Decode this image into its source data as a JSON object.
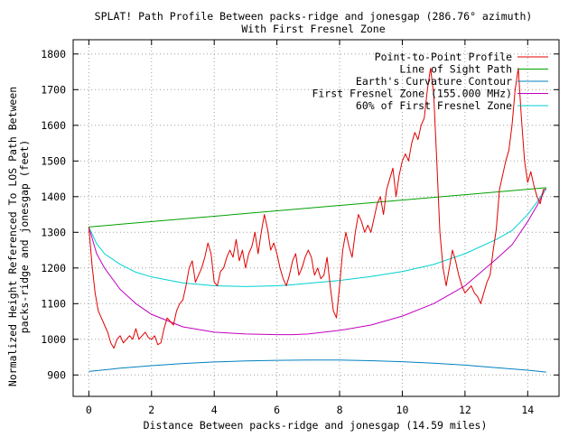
{
  "chart_data": {
    "type": "line",
    "title": "SPLAT! Path Profile Between packs-ridge and jonesgap (286.76° azimuth)",
    "subtitle": "With First Fresnel Zone",
    "xlabel": "Distance Between packs-ridge and jonesgap (14.59 miles)",
    "ylabel_line1": "Normalized Height Referenced To LOS Path Between",
    "ylabel_line2": "packs-ridge and jonesgap (feet)",
    "xlim": [
      -0.5,
      15.0
    ],
    "ylim": [
      840,
      1840
    ],
    "x_ticks": [
      0,
      2,
      4,
      6,
      8,
      10,
      12,
      14
    ],
    "y_ticks": [
      900,
      1000,
      1100,
      1200,
      1300,
      1400,
      1500,
      1600,
      1700,
      1800
    ],
    "grid": true,
    "legend_position": "top-right",
    "series": [
      {
        "name": "Point-to-Point Profile",
        "color": "#e00000",
        "x": [
          0.0,
          0.1,
          0.2,
          0.3,
          0.4,
          0.5,
          0.6,
          0.7,
          0.8,
          0.9,
          1.0,
          1.1,
          1.2,
          1.3,
          1.4,
          1.5,
          1.6,
          1.7,
          1.8,
          1.9,
          2.0,
          2.1,
          2.2,
          2.3,
          2.4,
          2.5,
          2.6,
          2.7,
          2.8,
          2.9,
          3.0,
          3.1,
          3.2,
          3.3,
          3.4,
          3.5,
          3.6,
          3.7,
          3.8,
          3.9,
          4.0,
          4.1,
          4.2,
          4.3,
          4.4,
          4.5,
          4.6,
          4.7,
          4.8,
          4.9,
          5.0,
          5.1,
          5.2,
          5.3,
          5.4,
          5.5,
          5.6,
          5.7,
          5.8,
          5.9,
          6.0,
          6.1,
          6.2,
          6.3,
          6.4,
          6.5,
          6.6,
          6.7,
          6.8,
          6.9,
          7.0,
          7.1,
          7.2,
          7.3,
          7.4,
          7.5,
          7.6,
          7.7,
          7.8,
          7.9,
          8.0,
          8.1,
          8.2,
          8.3,
          8.4,
          8.5,
          8.6,
          8.7,
          8.8,
          8.9,
          9.0,
          9.1,
          9.2,
          9.3,
          9.4,
          9.5,
          9.6,
          9.7,
          9.8,
          9.9,
          10.0,
          10.1,
          10.2,
          10.3,
          10.4,
          10.5,
          10.6,
          10.7,
          10.8,
          10.9,
          11.0,
          11.1,
          11.2,
          11.3,
          11.4,
          11.5,
          11.6,
          11.7,
          11.8,
          11.9,
          12.0,
          12.1,
          12.2,
          12.3,
          12.4,
          12.5,
          12.6,
          12.7,
          12.8,
          12.9,
          13.0,
          13.1,
          13.2,
          13.3,
          13.4,
          13.5,
          13.6,
          13.7,
          13.8,
          13.9,
          14.0,
          14.1,
          14.2,
          14.3,
          14.4,
          14.5,
          14.59
        ],
        "y": [
          1315,
          1210,
          1130,
          1080,
          1060,
          1040,
          1020,
          990,
          975,
          1000,
          1010,
          990,
          1000,
          1010,
          1000,
          1030,
          1000,
          1010,
          1020,
          1005,
          1000,
          1010,
          985,
          990,
          1030,
          1060,
          1050,
          1040,
          1080,
          1100,
          1110,
          1150,
          1200,
          1220,
          1160,
          1180,
          1200,
          1230,
          1270,
          1240,
          1160,
          1150,
          1190,
          1200,
          1230,
          1250,
          1230,
          1280,
          1220,
          1250,
          1200,
          1240,
          1260,
          1300,
          1240,
          1300,
          1350,
          1310,
          1250,
          1270,
          1240,
          1200,
          1170,
          1150,
          1180,
          1220,
          1240,
          1180,
          1200,
          1230,
          1250,
          1230,
          1180,
          1200,
          1170,
          1180,
          1230,
          1150,
          1080,
          1060,
          1150,
          1250,
          1300,
          1260,
          1230,
          1300,
          1350,
          1330,
          1300,
          1320,
          1300,
          1340,
          1380,
          1400,
          1350,
          1420,
          1450,
          1480,
          1400,
          1460,
          1500,
          1520,
          1500,
          1550,
          1580,
          1560,
          1600,
          1620,
          1700,
          1760,
          1690,
          1500,
          1300,
          1200,
          1150,
          1200,
          1250,
          1220,
          1180,
          1150,
          1130,
          1140,
          1150,
          1130,
          1120,
          1100,
          1130,
          1160,
          1180,
          1250,
          1310,
          1420,
          1460,
          1500,
          1530,
          1600,
          1700,
          1760,
          1620,
          1500,
          1440,
          1470,
          1430,
          1400,
          1380,
          1420,
          1420
        ]
      },
      {
        "name": "Line of Sight Path",
        "color": "#00a000",
        "x": [
          0,
          14.59
        ],
        "y": [
          1315,
          1425
        ]
      },
      {
        "name": "Earth's Curvature Contour",
        "color": "#0080c0",
        "x": [
          0,
          1,
          2,
          3,
          4,
          5,
          6,
          7,
          7.3,
          8,
          9,
          10,
          11,
          12,
          13,
          14,
          14.59
        ],
        "y": [
          910,
          919,
          926,
          932,
          936.5,
          939.3,
          941.1,
          941.9,
          942,
          941.8,
          940.1,
          937.3,
          933.2,
          927.6,
          920.5,
          913.5,
          908
        ]
      },
      {
        "name": "First Fresnel Zone (155.000 MHz)",
        "color": "#c000c0",
        "x": [
          0,
          0.25,
          0.5,
          1,
          1.5,
          2,
          3,
          4,
          5,
          6,
          6.5,
          7,
          8,
          9,
          10,
          11,
          12,
          13,
          13.5,
          14,
          14.3,
          14.59
        ],
        "y": [
          1315,
          1240,
          1200,
          1140,
          1100,
          1070,
          1035,
          1020,
          1015,
          1013,
          1013,
          1015,
          1025,
          1040,
          1065,
          1100,
          1150,
          1225,
          1265,
          1330,
          1375,
          1425
        ]
      },
      {
        "name": "60% of First Fresnel Zone",
        "color": "#00d0d0",
        "x": [
          0,
          0.25,
          0.5,
          1,
          1.5,
          2,
          3,
          4,
          5,
          6,
          6.5,
          7,
          8,
          9,
          10,
          11,
          12,
          13,
          13.5,
          14,
          14.3,
          14.59
        ],
        "y": [
          1315,
          1268,
          1240,
          1210,
          1188,
          1175,
          1158,
          1150,
          1148,
          1150,
          1153,
          1157,
          1165,
          1176,
          1190,
          1210,
          1240,
          1280,
          1305,
          1350,
          1385,
          1425
        ]
      }
    ]
  }
}
